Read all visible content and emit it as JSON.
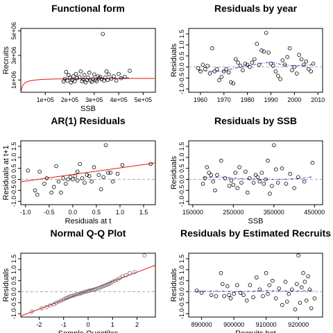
{
  "chart_data": [
    {
      "id": "functional-form",
      "type": "scatter",
      "title": "Functional form",
      "xlabel": "SSB",
      "ylabel": "Recruits",
      "xlim": [
        0,
        550000
      ],
      "ylim": [
        0,
        5200000
      ],
      "xticks": [
        100000,
        200000,
        300000,
        400000,
        500000
      ],
      "xtick_labels": [
        "1e+05",
        "2e+05",
        "3e+05",
        "4e+05",
        "5e+05"
      ],
      "yticks": [
        1000000,
        3000000,
        5000000
      ],
      "ytick_labels": [
        "1e+06",
        "3e+06",
        "5e+06"
      ],
      "points": [
        [
          175000,
          880000
        ],
        [
          180000,
          1100000
        ],
        [
          185000,
          1650000
        ],
        [
          190000,
          950000
        ],
        [
          195000,
          1400000
        ],
        [
          200000,
          1200000
        ],
        [
          205000,
          800000
        ],
        [
          210000,
          1000000
        ],
        [
          215000,
          1300000
        ],
        [
          220000,
          900000
        ],
        [
          225000,
          1500000
        ],
        [
          230000,
          1150000
        ],
        [
          240000,
          1250000
        ],
        [
          245000,
          1700000
        ],
        [
          250000,
          900000
        ],
        [
          255000,
          1050000
        ],
        [
          260000,
          1400000
        ],
        [
          265000,
          800000
        ],
        [
          270000,
          1000000
        ],
        [
          275000,
          1200000
        ],
        [
          280000,
          1600000
        ],
        [
          285000,
          950000
        ],
        [
          290000,
          850000
        ],
        [
          295000,
          1100000
        ],
        [
          300000,
          1450000
        ],
        [
          305000,
          1000000
        ],
        [
          310000,
          900000
        ],
        [
          315000,
          1300000
        ],
        [
          320000,
          1150000
        ],
        [
          325000,
          1250000
        ],
        [
          330000,
          1050000
        ],
        [
          335000,
          4750000
        ],
        [
          340000,
          950000
        ],
        [
          345000,
          1200000
        ],
        [
          350000,
          1700000
        ],
        [
          355000,
          1000000
        ],
        [
          360000,
          1450000
        ],
        [
          370000,
          1100000
        ],
        [
          380000,
          1300000
        ],
        [
          390000,
          950000
        ],
        [
          400000,
          1500000
        ],
        [
          410000,
          1150000
        ],
        [
          425000,
          1250000
        ],
        [
          445000,
          1750000
        ]
      ],
      "fit_curve": {
        "color": "#ee1111"
      },
      "smooth_curve": {
        "color": "#3333cc"
      }
    },
    {
      "id": "residuals-by-year",
      "type": "scatter",
      "title": "Residuals by year",
      "xlabel": "",
      "ylabel": "Residuals",
      "xlim": [
        1955,
        2012
      ],
      "ylim": [
        -1.15,
        1.75
      ],
      "xticks": [
        1960,
        1970,
        1980,
        1990,
        2000,
        2010
      ],
      "xtick_labels": [
        "1960",
        "1970",
        "1980",
        "1990",
        "2000",
        "2010"
      ],
      "yticks": [
        -1.0,
        -0.5,
        0.0,
        0.5,
        1.0,
        1.5
      ],
      "ytick_labels": [
        "-1.0",
        "-0.5",
        "0.0",
        "0.5",
        "1.0",
        "1.5"
      ],
      "points": [
        [
          1959,
          -0.05
        ],
        [
          1960,
          -0.2
        ],
        [
          1961,
          0.1
        ],
        [
          1962,
          -0.1
        ],
        [
          1963,
          0.05
        ],
        [
          1964,
          -0.3
        ],
        [
          1965,
          0.85
        ],
        [
          1966,
          -0.2
        ],
        [
          1967,
          -0.1
        ],
        [
          1968,
          -0.6
        ],
        [
          1969,
          -0.45
        ],
        [
          1970,
          -0.2
        ],
        [
          1971,
          -0.1
        ],
        [
          1972,
          -0.25
        ],
        [
          1973,
          -0.7
        ],
        [
          1974,
          -0.75
        ],
        [
          1975,
          0.35
        ],
        [
          1976,
          0.2
        ],
        [
          1977,
          0.05
        ],
        [
          1978,
          -0.15
        ],
        [
          1979,
          0.15
        ],
        [
          1980,
          0.1
        ],
        [
          1981,
          0.0
        ],
        [
          1982,
          0.2
        ],
        [
          1983,
          0.35
        ],
        [
          1984,
          1.05
        ],
        [
          1985,
          0.1
        ],
        [
          1986,
          0.75
        ],
        [
          1987,
          0.7
        ],
        [
          1988,
          1.55
        ],
        [
          1989,
          0.65
        ],
        [
          1990,
          0.15
        ],
        [
          1991,
          0.05
        ],
        [
          1992,
          -0.2
        ],
        [
          1993,
          -0.4
        ],
        [
          1994,
          -0.55
        ],
        [
          1995,
          0.3
        ],
        [
          1996,
          0.1
        ],
        [
          1997,
          0.45
        ],
        [
          1998,
          0.85
        ],
        [
          1999,
          -0.15
        ],
        [
          2000,
          0.0
        ],
        [
          2001,
          -0.3
        ],
        [
          2002,
          0.55
        ],
        [
          2003,
          0.35
        ],
        [
          2004,
          0.1
        ],
        [
          2005,
          0.25
        ],
        [
          2006,
          -0.1
        ],
        [
          2007,
          -0.2
        ],
        [
          2008,
          0.15
        ]
      ],
      "smooth_points": [
        [
          1959,
          -0.15
        ],
        [
          1965,
          -0.2
        ],
        [
          1970,
          -0.18
        ],
        [
          1975,
          -0.05
        ],
        [
          1980,
          0.05
        ],
        [
          1985,
          0.15
        ],
        [
          1990,
          0.22
        ],
        [
          1995,
          0.1
        ],
        [
          2000,
          0.05
        ],
        [
          2005,
          0.08
        ],
        [
          2008,
          0.1
        ]
      ]
    },
    {
      "id": "ar1-residuals",
      "type": "scatter",
      "title": "AR(1) Residuals",
      "xlabel": "Residuals at t",
      "ylabel": "Residuals at t+1",
      "xlim": [
        -1.1,
        1.75
      ],
      "ylim": [
        -1.15,
        1.75
      ],
      "xticks": [
        -1.0,
        -0.5,
        0.0,
        0.5,
        1.0,
        1.5
      ],
      "xtick_labels": [
        "-1.0",
        "-0.5",
        "0.0",
        "0.5",
        "1.0",
        "1.5"
      ],
      "yticks": [
        -1.0,
        -0.5,
        0.0,
        0.5,
        1.0,
        1.5
      ],
      "ytick_labels": [
        "-1.0",
        "-0.5",
        "0.0",
        "0.5",
        "1.0",
        "1.5"
      ],
      "points": [
        [
          -0.95,
          0.4
        ],
        [
          -0.8,
          -0.5
        ],
        [
          -0.75,
          -0.7
        ],
        [
          -0.7,
          0.35
        ],
        [
          -0.6,
          -0.2
        ],
        [
          -0.55,
          0.05
        ],
        [
          -0.45,
          -0.6
        ],
        [
          -0.4,
          -0.35
        ],
        [
          -0.35,
          0.6
        ],
        [
          -0.3,
          -0.1
        ],
        [
          -0.25,
          -0.6
        ],
        [
          -0.2,
          0.05
        ],
        [
          -0.15,
          -0.2
        ],
        [
          -0.1,
          0.0
        ],
        [
          -0.05,
          0.1
        ],
        [
          0.0,
          0.0
        ],
        [
          0.05,
          0.15
        ],
        [
          0.1,
          -0.05
        ],
        [
          0.1,
          0.35
        ],
        [
          0.15,
          0.7
        ],
        [
          0.2,
          0.05
        ],
        [
          0.25,
          -0.15
        ],
        [
          0.3,
          0.2
        ],
        [
          0.35,
          0.15
        ],
        [
          0.4,
          -0.1
        ],
        [
          0.45,
          0.55
        ],
        [
          0.55,
          0.2
        ],
        [
          0.6,
          -0.45
        ],
        [
          0.65,
          0.1
        ],
        [
          0.7,
          1.55
        ],
        [
          0.75,
          0.3
        ],
        [
          0.8,
          0.3
        ],
        [
          0.85,
          -0.1
        ],
        [
          0.95,
          0.25
        ],
        [
          1.05,
          0.65
        ],
        [
          1.65,
          0.7
        ]
      ],
      "regression": {
        "slope": 0.3,
        "intercept": 0.22
      }
    },
    {
      "id": "residuals-by-ssb",
      "type": "scatter",
      "title": "Residuals by SSB",
      "xlabel": "SSB",
      "ylabel": "Residuals",
      "xlim": [
        140000,
        470000
      ],
      "ylim": [
        -1.15,
        1.75
      ],
      "xticks": [
        150000,
        250000,
        350000,
        450000
      ],
      "xtick_labels": [
        "150000",
        "250000",
        "350000",
        "450000"
      ],
      "yticks": [
        -1.0,
        -0.5,
        0.0,
        0.5,
        1.0,
        1.5
      ],
      "ytick_labels": [
        "-1.0",
        "-0.5",
        "0.0",
        "0.5",
        "1.0",
        "1.5"
      ],
      "points": [
        [
          175000,
          -0.2
        ],
        [
          180000,
          0.05
        ],
        [
          185000,
          0.55
        ],
        [
          190000,
          0.3
        ],
        [
          195000,
          0.2
        ],
        [
          200000,
          -0.1
        ],
        [
          205000,
          -0.5
        ],
        [
          210000,
          0.2
        ],
        [
          220000,
          0.85
        ],
        [
          230000,
          0.05
        ],
        [
          240000,
          -0.3
        ],
        [
          245000,
          -0.05
        ],
        [
          250000,
          -0.25
        ],
        [
          255000,
          0.3
        ],
        [
          260000,
          -0.4
        ],
        [
          265000,
          0.55
        ],
        [
          270000,
          -0.15
        ],
        [
          280000,
          0.35
        ],
        [
          285000,
          -0.6
        ],
        [
          290000,
          0.05
        ],
        [
          300000,
          -0.15
        ],
        [
          305000,
          0.2
        ],
        [
          310000,
          0.1
        ],
        [
          315000,
          -0.1
        ],
        [
          320000,
          0.3
        ],
        [
          325000,
          -0.2
        ],
        [
          330000,
          0.0
        ],
        [
          335000,
          0.85
        ],
        [
          340000,
          -0.65
        ],
        [
          345000,
          -0.3
        ],
        [
          350000,
          1.55
        ],
        [
          355000,
          0.45
        ],
        [
          360000,
          -0.15
        ],
        [
          370000,
          0.5
        ],
        [
          380000,
          -0.2
        ],
        [
          390000,
          0.25
        ],
        [
          400000,
          -0.4
        ],
        [
          410000,
          0.1
        ],
        [
          425000,
          -0.1
        ],
        [
          445000,
          0.75
        ]
      ],
      "smooth_points": [
        [
          175000,
          0.08
        ],
        [
          220000,
          0.1
        ],
        [
          270000,
          0.03
        ],
        [
          320000,
          0.0
        ],
        [
          370000,
          0.0
        ],
        [
          420000,
          0.04
        ],
        [
          445000,
          0.12
        ]
      ]
    },
    {
      "id": "normal-qq",
      "type": "scatter",
      "title": "Normal Q-Q Plot",
      "xlabel": "Sample Quantiles",
      "ylabel": "Residuals",
      "xlim": [
        -2.75,
        2.75
      ],
      "ylim": [
        -1.15,
        1.75
      ],
      "xticks": [
        -2,
        -1,
        0,
        1,
        2
      ],
      "xtick_labels": [
        "-2",
        "-1",
        "0",
        "1",
        "2"
      ],
      "yticks": [
        -1.0,
        -0.5,
        0.0,
        0.5,
        1.0,
        1.5
      ],
      "ytick_labels": [
        "-1.0",
        "-0.5",
        "0.0",
        "0.5",
        "1.0",
        "1.5"
      ],
      "points": [
        [
          -2.3,
          -0.9
        ],
        [
          -1.9,
          -0.75
        ],
        [
          -1.7,
          -0.7
        ],
        [
          -1.55,
          -0.62
        ],
        [
          -1.4,
          -0.57
        ],
        [
          -1.3,
          -0.5
        ],
        [
          -1.2,
          -0.45
        ],
        [
          -1.1,
          -0.4
        ],
        [
          -1.0,
          -0.35
        ],
        [
          -0.92,
          -0.3
        ],
        [
          -0.85,
          -0.27
        ],
        [
          -0.78,
          -0.23
        ],
        [
          -0.7,
          -0.2
        ],
        [
          -0.62,
          -0.18
        ],
        [
          -0.55,
          -0.15
        ],
        [
          -0.48,
          -0.12
        ],
        [
          -0.4,
          -0.1
        ],
        [
          -0.32,
          -0.08
        ],
        [
          -0.25,
          -0.05
        ],
        [
          -0.18,
          -0.02
        ],
        [
          -0.1,
          0.0
        ],
        [
          -0.03,
          0.02
        ],
        [
          0.03,
          0.04
        ],
        [
          0.1,
          0.06
        ],
        [
          0.18,
          0.08
        ],
        [
          0.25,
          0.1
        ],
        [
          0.32,
          0.12
        ],
        [
          0.4,
          0.15
        ],
        [
          0.48,
          0.18
        ],
        [
          0.55,
          0.22
        ],
        [
          0.62,
          0.25
        ],
        [
          0.7,
          0.28
        ],
        [
          0.78,
          0.32
        ],
        [
          0.85,
          0.36
        ],
        [
          0.92,
          0.4
        ],
        [
          1.0,
          0.45
        ],
        [
          1.1,
          0.5
        ],
        [
          1.2,
          0.55
        ],
        [
          1.3,
          0.62
        ],
        [
          1.4,
          0.7
        ],
        [
          1.55,
          0.75
        ],
        [
          1.7,
          0.85
        ],
        [
          1.9,
          0.9
        ],
        [
          2.3,
          1.65
        ]
      ],
      "qq_line": {
        "slope": 0.42,
        "intercept": 0.05
      }
    },
    {
      "id": "residuals-by-est-recruits",
      "type": "scatter",
      "title": "Residuals by Estimated Recruits",
      "xlabel": "Recruits hat",
      "ylabel": "Residuals",
      "xlim": [
        886000,
        927500
      ],
      "ylim": [
        -1.15,
        1.75
      ],
      "xticks": [
        890000,
        900000,
        910000,
        920000
      ],
      "xtick_labels": [
        "890000",
        "900000",
        "910000",
        "920000"
      ],
      "yticks": [
        -1.0,
        -0.5,
        0.0,
        0.5,
        1.0,
        1.5
      ],
      "ytick_labels": [
        "-1.0",
        "-0.5",
        "0.0",
        "0.5",
        "1.0",
        "1.5"
      ],
      "points": [
        [
          888500,
          0.05
        ],
        [
          890000,
          -0.05
        ],
        [
          893000,
          -0.15
        ],
        [
          894500,
          -0.2
        ],
        [
          896000,
          0.85
        ],
        [
          896500,
          0.35
        ],
        [
          897000,
          -0.2
        ],
        [
          898000,
          0.25
        ],
        [
          898500,
          -0.15
        ],
        [
          899000,
          -0.3
        ],
        [
          900000,
          -0.1
        ],
        [
          901000,
          0.3
        ],
        [
          902000,
          -0.05
        ],
        [
          903000,
          -0.15
        ],
        [
          904000,
          -0.4
        ],
        [
          905000,
          0.3
        ],
        [
          906000,
          -0.25
        ],
        [
          907000,
          0.65
        ],
        [
          908000,
          0.1
        ],
        [
          909000,
          -0.2
        ],
        [
          910000,
          0.85
        ],
        [
          910500,
          -0.1
        ],
        [
          911000,
          0.3
        ],
        [
          912000,
          0.5
        ],
        [
          913000,
          -0.3
        ],
        [
          914000,
          0.15
        ],
        [
          915000,
          -0.6
        ],
        [
          916000,
          0.45
        ],
        [
          916500,
          -0.45
        ],
        [
          917000,
          -0.1
        ],
        [
          918000,
          0.1
        ],
        [
          919000,
          -0.8
        ],
        [
          919500,
          0.35
        ],
        [
          920000,
          1.65
        ],
        [
          920500,
          -0.5
        ],
        [
          921000,
          0.2
        ],
        [
          921500,
          0.85
        ],
        [
          922000,
          0.45
        ],
        [
          922500,
          -0.4
        ],
        [
          923000,
          0.7
        ],
        [
          923500,
          0.1
        ],
        [
          924000,
          -0.75
        ],
        [
          925000,
          -0.3
        ]
      ],
      "smooth_points": [
        [
          888500,
          0.02
        ],
        [
          895000,
          0.03
        ],
        [
          902000,
          0.0
        ],
        [
          910000,
          0.05
        ],
        [
          917000,
          0.03
        ],
        [
          925000,
          0.05
        ]
      ]
    }
  ]
}
